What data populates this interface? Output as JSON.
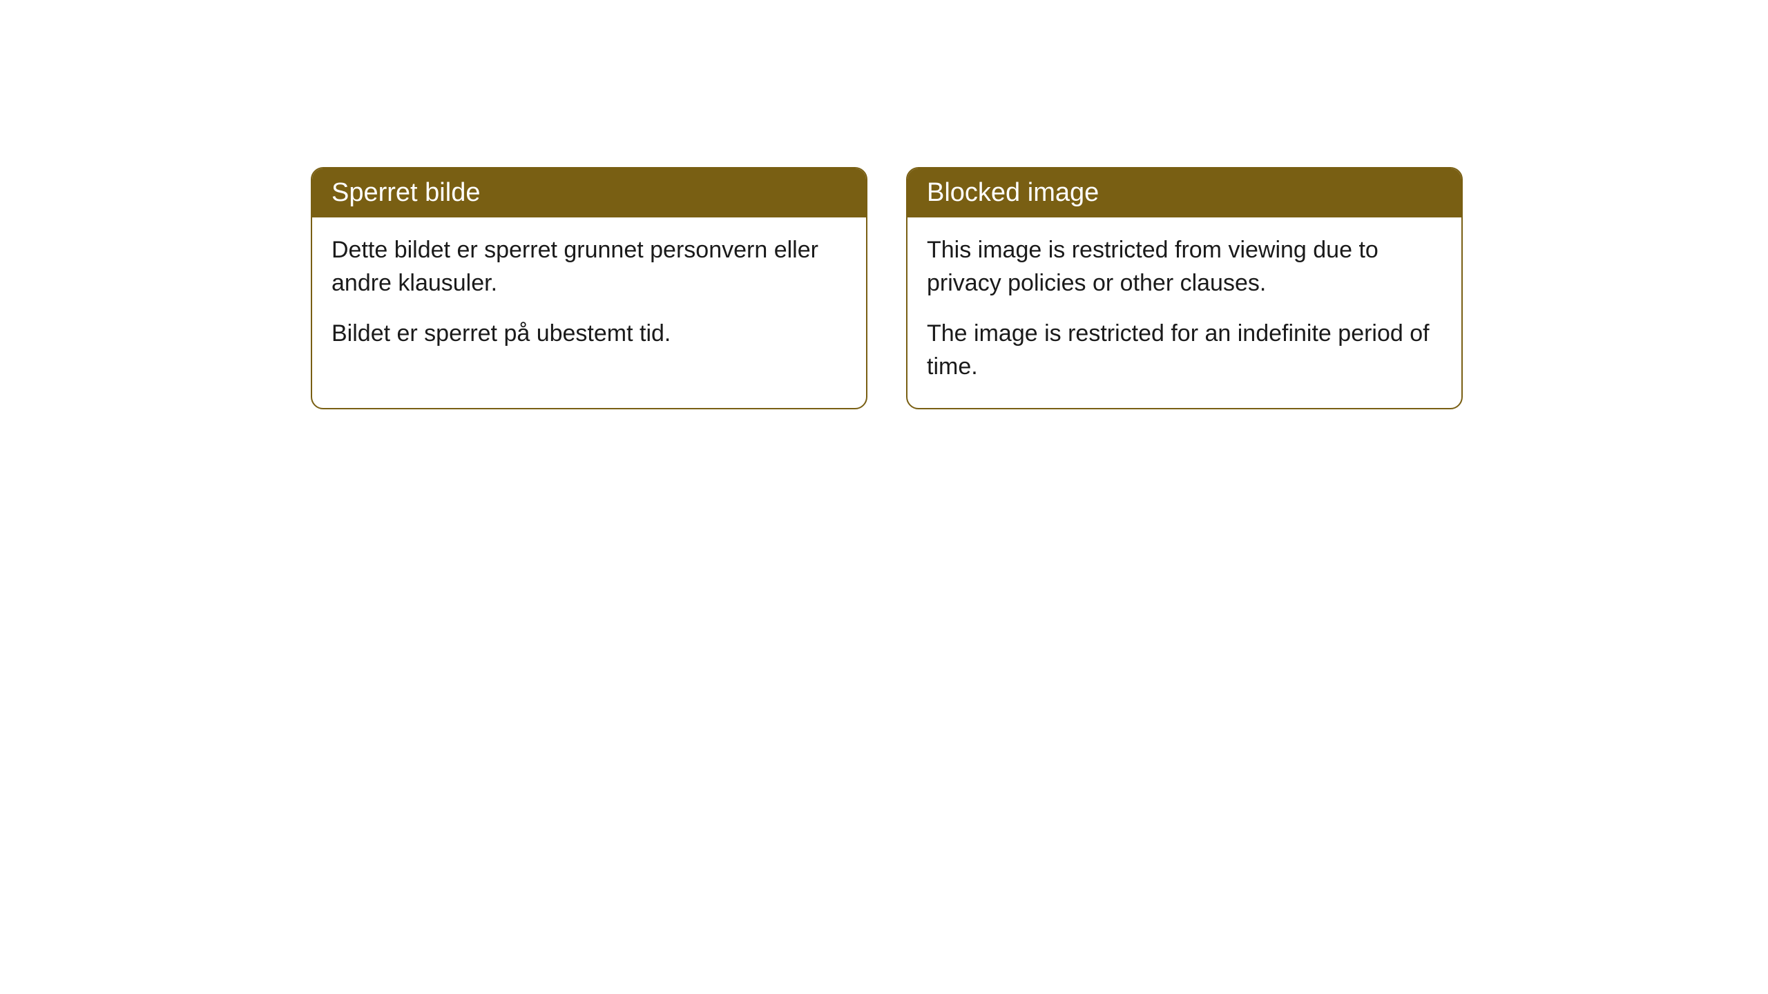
{
  "cards": [
    {
      "title": "Sperret bilde",
      "paragraph1": "Dette bildet er sperret grunnet personvern eller andre klausuler.",
      "paragraph2": "Bildet er sperret på ubestemt tid."
    },
    {
      "title": "Blocked image",
      "paragraph1": "This image is restricted from viewing due to privacy policies or other clauses.",
      "paragraph2": "The image is restricted for an indefinite period of time."
    }
  ],
  "styling": {
    "header_bg_color": "#795f13",
    "header_text_color": "#ffffff",
    "border_color": "#795f13",
    "body_bg_color": "#ffffff",
    "body_text_color": "#1a1a1a",
    "border_radius": 18,
    "header_fontsize": 38,
    "body_fontsize": 34
  }
}
